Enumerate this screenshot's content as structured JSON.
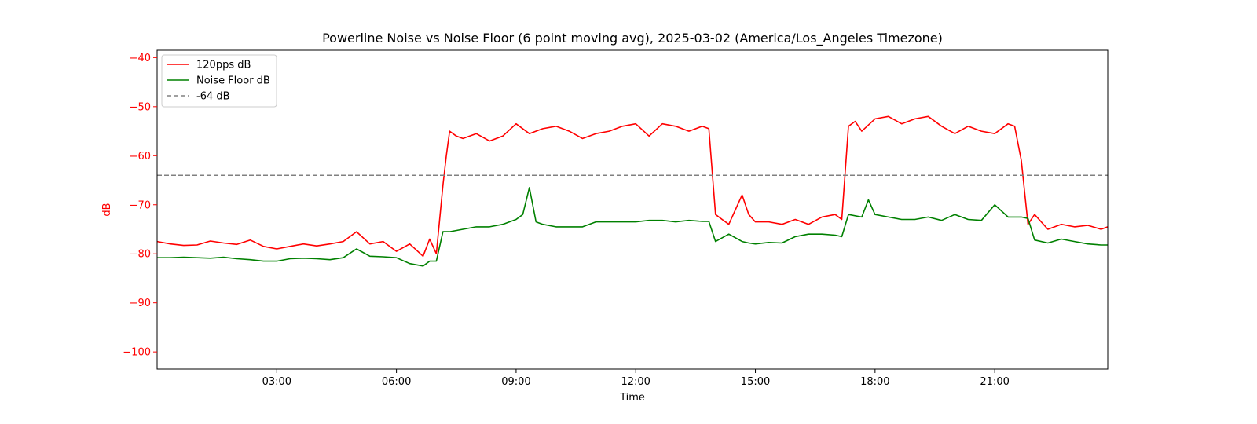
{
  "chart_data": {
    "type": "line",
    "title": "Powerline Noise vs Noise Floor (6 point moving avg), 2025-03-02 (America/Los_Angeles Timezone)",
    "xlabel": "Time",
    "ylabel": "dB",
    "xlim": [
      "00:00",
      "23:50"
    ],
    "ylim": [
      -103.5,
      -38.5
    ],
    "x_ticks": [
      "03:00",
      "06:00",
      "09:00",
      "12:00",
      "15:00",
      "18:00",
      "21:00"
    ],
    "y_ticks": [
      -40,
      -50,
      -60,
      -70,
      -80,
      -90,
      -100
    ],
    "grid": false,
    "legend_position": "top-left",
    "colors": {
      "ylabel": "#ff0000",
      "yticks": "#ff0000"
    },
    "series": [
      {
        "name": "120pps dB",
        "color": "#ff0000",
        "x": [
          "00:00",
          "00:20",
          "00:40",
          "01:00",
          "01:20",
          "01:40",
          "02:00",
          "02:20",
          "02:40",
          "03:00",
          "03:20",
          "03:40",
          "04:00",
          "04:20",
          "04:40",
          "05:00",
          "05:20",
          "05:40",
          "06:00",
          "06:20",
          "06:40",
          "06:50",
          "07:00",
          "07:10",
          "07:15",
          "07:20",
          "07:30",
          "07:40",
          "08:00",
          "08:20",
          "08:40",
          "09:00",
          "09:20",
          "09:40",
          "10:00",
          "10:20",
          "10:40",
          "11:00",
          "11:20",
          "11:40",
          "12:00",
          "12:20",
          "12:40",
          "13:00",
          "13:20",
          "13:40",
          "13:50",
          "14:00",
          "14:10",
          "14:20",
          "14:40",
          "14:50",
          "15:00",
          "15:20",
          "15:40",
          "16:00",
          "16:20",
          "16:40",
          "17:00",
          "17:10",
          "17:20",
          "17:30",
          "17:40",
          "18:00",
          "18:20",
          "18:40",
          "19:00",
          "19:20",
          "19:40",
          "20:00",
          "20:20",
          "20:40",
          "21:00",
          "21:20",
          "21:30",
          "21:40",
          "21:50",
          "22:00",
          "22:20",
          "22:40",
          "23:00",
          "23:20",
          "23:40",
          "23:50"
        ],
        "values": [
          -77.5,
          -78,
          -78.3,
          -78.2,
          -77.4,
          -77.8,
          -78.1,
          -77.2,
          -78.5,
          -79,
          -78.5,
          -78,
          -78.4,
          -78,
          -77.5,
          -75.5,
          -78,
          -77.5,
          -79.5,
          -78,
          -80.5,
          -77,
          -80,
          -66,
          -60,
          -55,
          -56,
          -56.5,
          -55.5,
          -57,
          -56,
          -53.5,
          -55.5,
          -54.5,
          -54,
          -55,
          -56.5,
          -55.5,
          -55,
          -54,
          -53.5,
          -56,
          -53.5,
          -54,
          -55,
          -54,
          -54.5,
          -72,
          -73,
          -74,
          -68,
          -72,
          -73.5,
          -73.5,
          -74,
          -73,
          -74,
          -72.5,
          -72,
          -73,
          -54,
          -53,
          -55,
          -52.5,
          -52,
          -53.5,
          -52.5,
          -52,
          -54,
          -55.5,
          -54,
          -55,
          -55.5,
          -53.5,
          -54,
          -61,
          -74,
          -72,
          -75,
          -74,
          -74.5,
          -74.2,
          -75,
          -74.5
        ]
      },
      {
        "name": "Noise Floor dB",
        "color": "#008000",
        "x": [
          "00:00",
          "00:20",
          "00:40",
          "01:00",
          "01:20",
          "01:40",
          "02:00",
          "02:20",
          "02:40",
          "03:00",
          "03:20",
          "03:40",
          "04:00",
          "04:20",
          "04:40",
          "05:00",
          "05:20",
          "05:40",
          "06:00",
          "06:20",
          "06:40",
          "06:50",
          "07:00",
          "07:10",
          "07:20",
          "07:40",
          "08:00",
          "08:20",
          "08:40",
          "09:00",
          "09:10",
          "09:20",
          "09:30",
          "09:40",
          "10:00",
          "10:20",
          "10:40",
          "11:00",
          "11:20",
          "11:40",
          "12:00",
          "12:20",
          "12:40",
          "13:00",
          "13:20",
          "13:40",
          "13:50",
          "14:00",
          "14:20",
          "14:40",
          "14:50",
          "15:00",
          "15:20",
          "15:40",
          "16:00",
          "16:20",
          "16:40",
          "17:00",
          "17:10",
          "17:20",
          "17:40",
          "17:50",
          "18:00",
          "18:20",
          "18:40",
          "19:00",
          "19:20",
          "19:40",
          "20:00",
          "20:20",
          "20:40",
          "21:00",
          "21:20",
          "21:40",
          "21:50",
          "22:00",
          "22:20",
          "22:40",
          "23:00",
          "23:20",
          "23:40",
          "23:50"
        ],
        "values": [
          -80.8,
          -80.8,
          -80.7,
          -80.8,
          -80.9,
          -80.7,
          -81,
          -81.2,
          -81.5,
          -81.5,
          -81,
          -80.9,
          -81,
          -81.2,
          -80.8,
          -79,
          -80.5,
          -80.6,
          -80.8,
          -82,
          -82.5,
          -81.5,
          -81.5,
          -75.5,
          -75.5,
          -75,
          -74.5,
          -74.5,
          -74,
          -73,
          -72,
          -66.5,
          -73.5,
          -74,
          -74.5,
          -74.5,
          -74.5,
          -73.5,
          -73.5,
          -73.5,
          -73.5,
          -73.2,
          -73.2,
          -73.5,
          -73.2,
          -73.4,
          -73.4,
          -77.5,
          -76,
          -77.5,
          -77.8,
          -78,
          -77.7,
          -77.8,
          -76.5,
          -76,
          -76,
          -76.2,
          -76.5,
          -72,
          -72.5,
          -69,
          -72,
          -72.5,
          -73,
          -73,
          -72.5,
          -73.2,
          -72,
          -73,
          -73.2,
          -70,
          -72.5,
          -72.5,
          -72.8,
          -77.2,
          -77.8,
          -77,
          -77.5,
          -78,
          -78.2,
          -78.2
        ]
      },
      {
        "name": "-64 dB",
        "color": "#808080",
        "style": "dashed",
        "x": [
          "00:00",
          "23:50"
        ],
        "values": [
          -64,
          -64
        ]
      }
    ]
  }
}
